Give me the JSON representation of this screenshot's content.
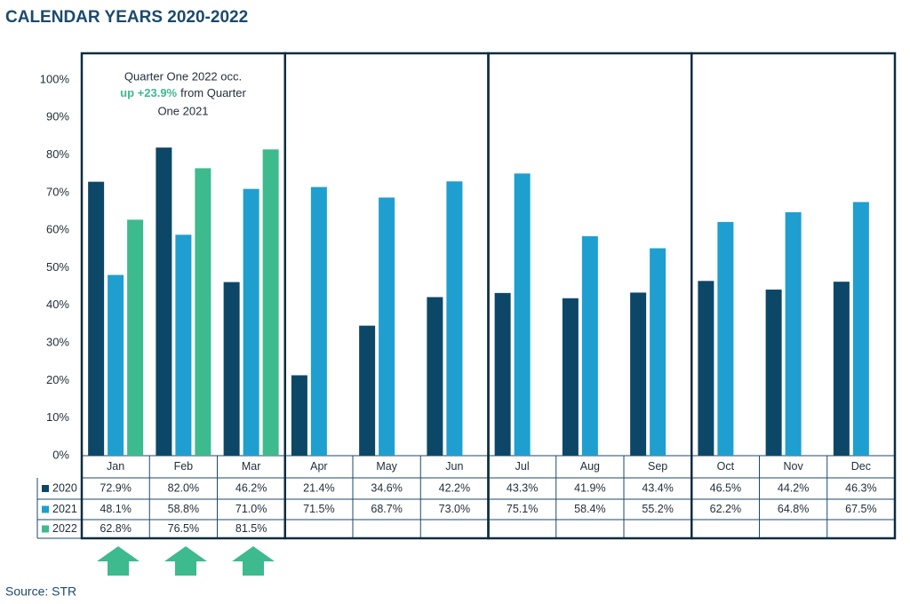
{
  "chart_data": {
    "type": "bar",
    "title": "CALENDAR YEARS 2020-2022",
    "source": "Source: STR",
    "annotation": {
      "line1": "Quarter One 2022 occ.",
      "highlight": "up +23.9%",
      "line2": "from Quarter",
      "line3": "One 2021"
    },
    "categories": [
      "Jan",
      "Feb",
      "Mar",
      "Apr",
      "May",
      "Jun",
      "Jul",
      "Aug",
      "Sep",
      "Oct",
      "Nov",
      "Dec"
    ],
    "series": [
      {
        "name": "2020",
        "color": "#0d4767",
        "values": [
          72.9,
          82.0,
          46.2,
          21.4,
          34.6,
          42.2,
          43.3,
          41.9,
          43.4,
          46.5,
          44.2,
          46.3
        ],
        "value_labels": [
          "72.9%",
          "82.0%",
          "46.2%",
          "21.4%",
          "34.6%",
          "42.2%",
          "43.3%",
          "41.9%",
          "43.4%",
          "46.5%",
          "44.2%",
          "46.3%"
        ]
      },
      {
        "name": "2021",
        "color": "#1e9fd0",
        "values": [
          48.1,
          58.8,
          71.0,
          71.5,
          68.7,
          73.0,
          75.1,
          58.4,
          55.2,
          62.2,
          64.8,
          67.5
        ],
        "value_labels": [
          "48.1%",
          "58.8%",
          "71.0%",
          "71.5%",
          "68.7%",
          "73.0%",
          "75.1%",
          "58.4%",
          "55.2%",
          "62.2%",
          "64.8%",
          "67.5%"
        ]
      },
      {
        "name": "2022",
        "color": "#3dba8e",
        "values": [
          62.8,
          76.5,
          81.5,
          null,
          null,
          null,
          null,
          null,
          null,
          null,
          null,
          null
        ],
        "value_labels": [
          "62.8%",
          "76.5%",
          "81.5%",
          null,
          null,
          null,
          null,
          null,
          null,
          null,
          null,
          null
        ]
      }
    ],
    "ylim": [
      0,
      100
    ],
    "yticks": [
      {
        "value": 0,
        "label": "0%"
      },
      {
        "value": 10,
        "label": "10%"
      },
      {
        "value": 20,
        "label": "20%"
      },
      {
        "value": 30,
        "label": "30%"
      },
      {
        "value": 40,
        "label": "40%"
      },
      {
        "value": 50,
        "label": "50%"
      },
      {
        "value": 60,
        "label": "60%"
      },
      {
        "value": 70,
        "label": "70%"
      },
      {
        "value": 80,
        "label": "80%"
      },
      {
        "value": 90,
        "label": "90%"
      },
      {
        "value": 100,
        "label": "100%"
      }
    ]
  }
}
